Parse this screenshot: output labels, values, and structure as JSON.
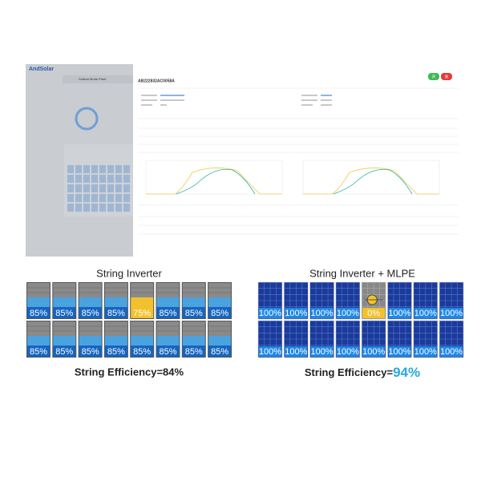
{
  "screenshot": {
    "logo": "AndSolar",
    "plant": "Sollinst Mode Plant",
    "device_id": "AB222832AC0058A",
    "buttons": [
      "开",
      "关"
    ]
  },
  "diagrams": [
    {
      "title": "String Inverter",
      "style": "standard",
      "panels": [
        {
          "label": "85%",
          "color": "#1565c0"
        },
        {
          "label": "85%",
          "color": "#1565c0"
        },
        {
          "label": "85%",
          "color": "#1565c0"
        },
        {
          "label": "85%",
          "color": "#1565c0"
        },
        {
          "label": "75%",
          "color": "#f2c12e"
        },
        {
          "label": "85%",
          "color": "#1565c0"
        },
        {
          "label": "85%",
          "color": "#1565c0"
        },
        {
          "label": "85%",
          "color": "#1565c0"
        },
        {
          "label": "85%",
          "color": "#1565c0"
        },
        {
          "label": "85%",
          "color": "#1565c0"
        },
        {
          "label": "85%",
          "color": "#1565c0"
        },
        {
          "label": "85%",
          "color": "#1565c0"
        },
        {
          "label": "85%",
          "color": "#1565c0"
        },
        {
          "label": "85%",
          "color": "#1565c0"
        },
        {
          "label": "85%",
          "color": "#1565c0"
        },
        {
          "label": "85%",
          "color": "#1565c0"
        }
      ],
      "efficiency_label": "String Efficiency=84%"
    },
    {
      "title": "String Inverter + MLPE",
      "style": "mlpe",
      "panels": [
        {
          "label": "100%",
          "color": "#1e88e5"
        },
        {
          "label": "100%",
          "color": "#1e88e5"
        },
        {
          "label": "100%",
          "color": "#1e88e5"
        },
        {
          "label": "100%",
          "color": "#1e88e5"
        },
        {
          "label": "0%",
          "color": "#f2c12e"
        },
        {
          "label": "100%",
          "color": "#1e88e5"
        },
        {
          "label": "100%",
          "color": "#1e88e5"
        },
        {
          "label": "100%",
          "color": "#1e88e5"
        },
        {
          "label": "100%",
          "color": "#1e88e5"
        },
        {
          "label": "100%",
          "color": "#1e88e5"
        },
        {
          "label": "100%",
          "color": "#1e88e5"
        },
        {
          "label": "100%",
          "color": "#1e88e5"
        },
        {
          "label": "100%",
          "color": "#1e88e5"
        },
        {
          "label": "100%",
          "color": "#1e88e5"
        },
        {
          "label": "100%",
          "color": "#1e88e5"
        },
        {
          "label": "100%",
          "color": "#1e88e5"
        }
      ],
      "efficiency_label": "String Efficiency=",
      "efficiency_value": "94%"
    }
  ]
}
